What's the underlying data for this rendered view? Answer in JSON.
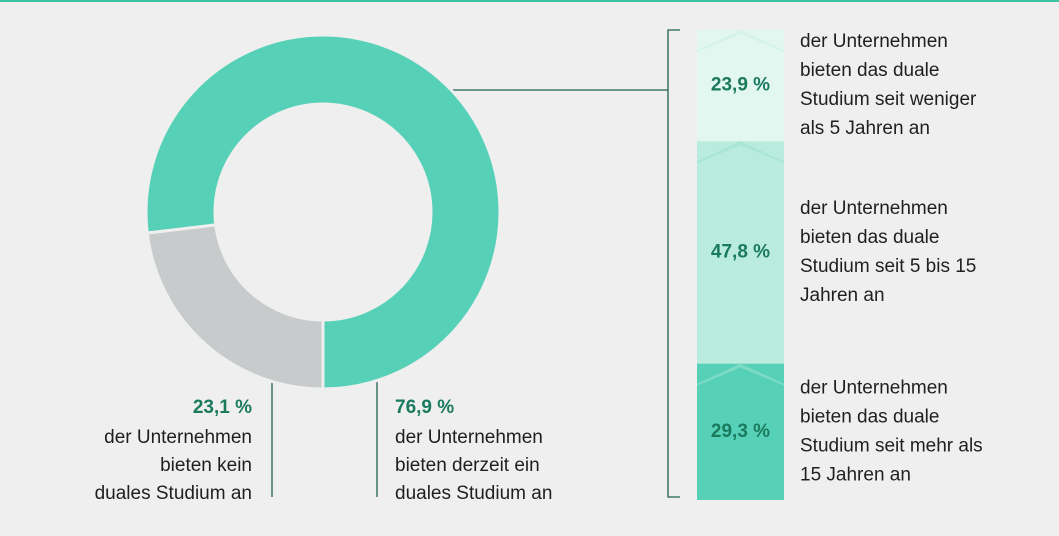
{
  "chart_data": [
    {
      "type": "pie",
      "categories": [
        [
          "der Unternehmen",
          "bieten derzeit ein",
          "duales Studium an"
        ],
        [
          "der Unternehmen",
          "bieten kein",
          "duales Studium an"
        ]
      ],
      "values": [
        76.9,
        23.1
      ],
      "value_labels": [
        "76,9 %",
        "23,1 %"
      ],
      "colors": [
        "#56d1b7",
        "#c8cbcc"
      ]
    },
    {
      "type": "bar",
      "categories": [
        [
          "der Unternehmen",
          "bieten das duale",
          "Studium seit weniger",
          "als 5 Jahren an"
        ],
        [
          "der Unternehmen",
          "bieten das duale",
          "Studium seit 5 bis 15",
          "Jahren an"
        ],
        [
          "der Unternehmen",
          "bieten das duale",
          "Studium seit mehr als",
          "15 Jahren an"
        ]
      ],
      "values": [
        23.9,
        47.8,
        29.3
      ],
      "value_labels": [
        "23,9 %",
        "47,8 %",
        "29,3 %"
      ],
      "colors": [
        "#e3f7f1",
        "#b9ecdd",
        "#56d1b7"
      ]
    }
  ]
}
